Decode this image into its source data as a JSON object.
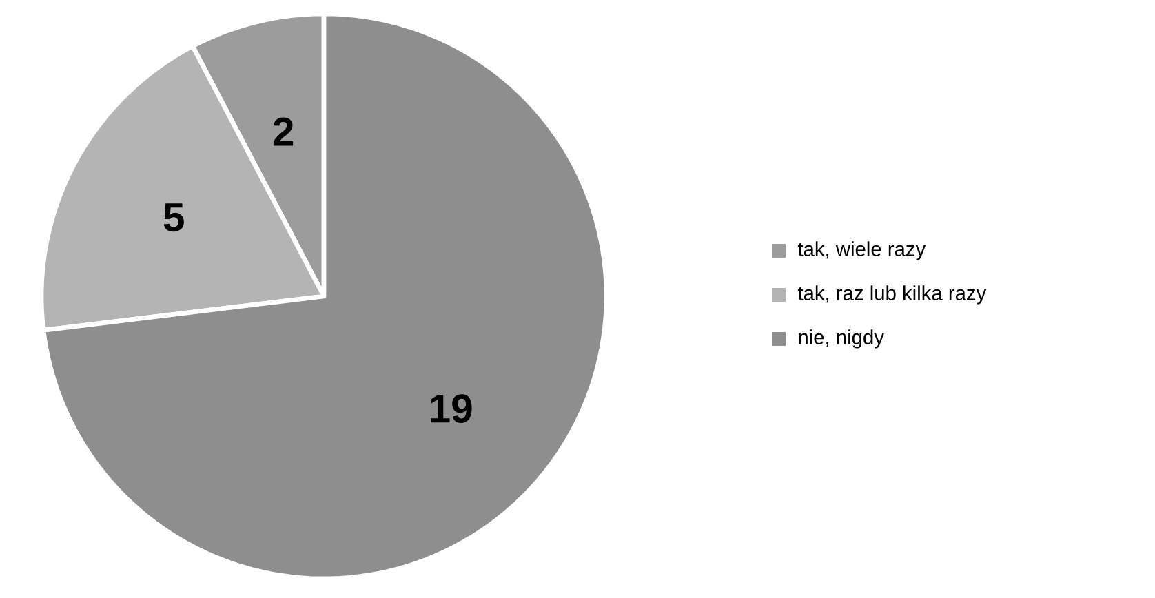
{
  "chart_data": {
    "type": "pie",
    "categories": [
      "tak, wiele razy",
      "tak, raz lub kilka razy",
      "nie, nigdy"
    ],
    "values": [
      2,
      5,
      19
    ],
    "colors": [
      "#9c9c9c",
      "#b4b4b4",
      "#8e8e8e"
    ],
    "data_labels": true,
    "legend": "right"
  }
}
